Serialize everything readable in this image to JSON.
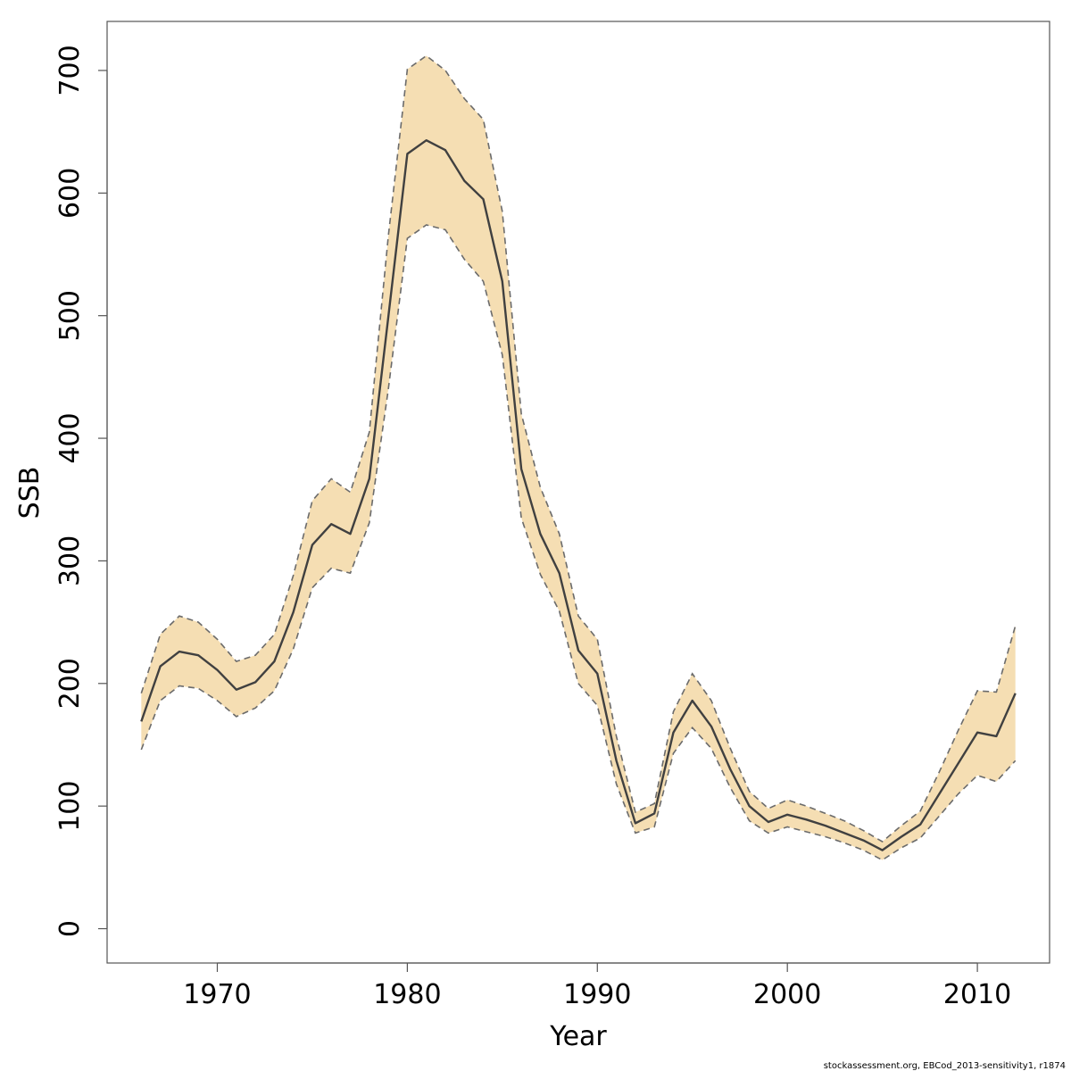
{
  "chart_data": {
    "type": "area",
    "xlabel": "Year",
    "ylabel": "SSB",
    "xlim": [
      1964.2,
      2013.8
    ],
    "ylim": [
      -28,
      740
    ],
    "xticks": [
      1970,
      1980,
      1990,
      2000,
      2010
    ],
    "yticks": [
      0,
      100,
      200,
      300,
      400,
      500,
      600,
      700
    ],
    "grid": false,
    "x": [
      1966,
      1967,
      1968,
      1969,
      1970,
      1971,
      1972,
      1973,
      1974,
      1975,
      1976,
      1977,
      1978,
      1979,
      1980,
      1981,
      1982,
      1983,
      1984,
      1985,
      1986,
      1987,
      1988,
      1989,
      1990,
      1991,
      1992,
      1993,
      1994,
      1995,
      1996,
      1997,
      1998,
      1999,
      2000,
      2001,
      2002,
      2003,
      2004,
      2005,
      2006,
      2007,
      2008,
      2009,
      2010,
      2011,
      2012
    ],
    "series": [
      {
        "role": "estimate",
        "values": [
          169,
          214,
          226,
          223,
          211,
          195,
          201,
          218,
          258,
          313,
          330,
          322,
          367,
          499,
          632,
          643,
          635,
          610,
          595,
          528,
          375,
          322,
          290,
          227,
          208,
          137,
          86,
          94,
          160,
          186,
          165,
          130,
          100,
          87,
          93,
          89,
          84,
          78,
          72,
          64,
          75,
          85,
          110,
          135,
          160,
          157,
          192
        ]
      },
      {
        "role": "upper",
        "values": [
          192,
          240,
          255,
          250,
          236,
          218,
          223,
          240,
          288,
          349,
          367,
          356,
          405,
          565,
          701,
          712,
          700,
          677,
          660,
          585,
          420,
          360,
          322,
          255,
          236,
          157,
          95,
          102,
          177,
          208,
          186,
          147,
          112,
          98,
          105,
          100,
          94,
          88,
          80,
          71,
          84,
          96,
          128,
          162,
          194,
          193,
          247
        ]
      },
      {
        "role": "lower",
        "values": [
          146,
          186,
          198,
          196,
          186,
          173,
          180,
          194,
          228,
          278,
          294,
          290,
          331,
          440,
          563,
          574,
          570,
          546,
          528,
          468,
          335,
          289,
          259,
          200,
          182,
          118,
          78,
          83,
          143,
          164,
          147,
          115,
          88,
          78,
          83,
          79,
          75,
          70,
          64,
          56,
          66,
          74,
          92,
          110,
          125,
          120,
          137
        ]
      }
    ],
    "colors": {
      "band": "#F5DEB3",
      "line": "#404040",
      "bound": "#6b6b6b",
      "frame": "#555555"
    }
  },
  "footer": "stockassessment.org, EBCod_2013-sensitivity1, r1874"
}
